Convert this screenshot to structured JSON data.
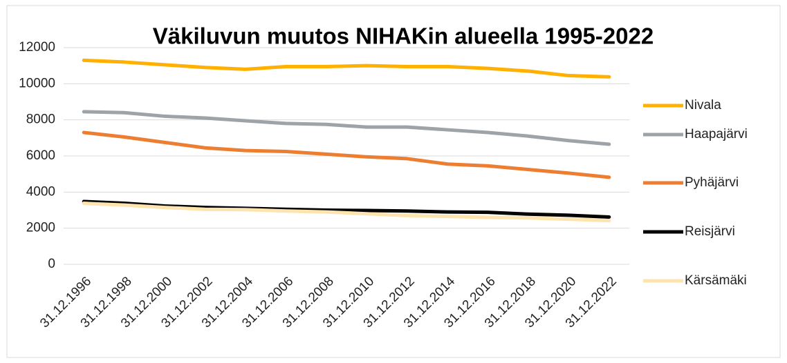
{
  "chart_data": {
    "type": "line",
    "title": "Väkiluvun muutos NIHAKin alueella 1995-2022",
    "categories": [
      "31.12.1996",
      "31.12.1998",
      "31.12.2000",
      "31.12.2002",
      "31.12.2004",
      "31.12.2006",
      "31.12.2008",
      "31.12.2010",
      "31.12.2012",
      "31.12.2014",
      "31.12.2016",
      "31.12.2018",
      "31.12.2020",
      "31.12.2022"
    ],
    "series": [
      {
        "name": "Nivala",
        "color": "#ffb000",
        "values": [
          11300,
          11200,
          11050,
          10900,
          10800,
          10950,
          10950,
          11000,
          10950,
          10950,
          10850,
          10700,
          10450,
          10380
        ]
      },
      {
        "name": "Haapajärvi",
        "color": "#9ea3a8",
        "values": [
          8450,
          8400,
          8200,
          8100,
          7950,
          7800,
          7750,
          7600,
          7600,
          7450,
          7300,
          7100,
          6850,
          6650
        ]
      },
      {
        "name": "Pyhäjärvi",
        "color": "#ed7d31",
        "values": [
          7300,
          7050,
          6750,
          6450,
          6300,
          6250,
          6100,
          5950,
          5850,
          5550,
          5450,
          5250,
          5050,
          4820
        ]
      },
      {
        "name": "Reisjärvi",
        "color": "#000000",
        "values": [
          3480,
          3380,
          3230,
          3150,
          3100,
          3050,
          3000,
          2980,
          2950,
          2900,
          2880,
          2780,
          2720,
          2620
        ]
      },
      {
        "name": "Kärsämäki",
        "color": "#fde3ad",
        "values": [
          3380,
          3280,
          3150,
          3050,
          3030,
          2950,
          2900,
          2800,
          2700,
          2650,
          2600,
          2570,
          2500,
          2420
        ]
      }
    ],
    "ylim": [
      0,
      12000
    ],
    "yticks": [
      0,
      2000,
      4000,
      6000,
      8000,
      10000,
      12000
    ],
    "grid": true,
    "legend": "right"
  }
}
